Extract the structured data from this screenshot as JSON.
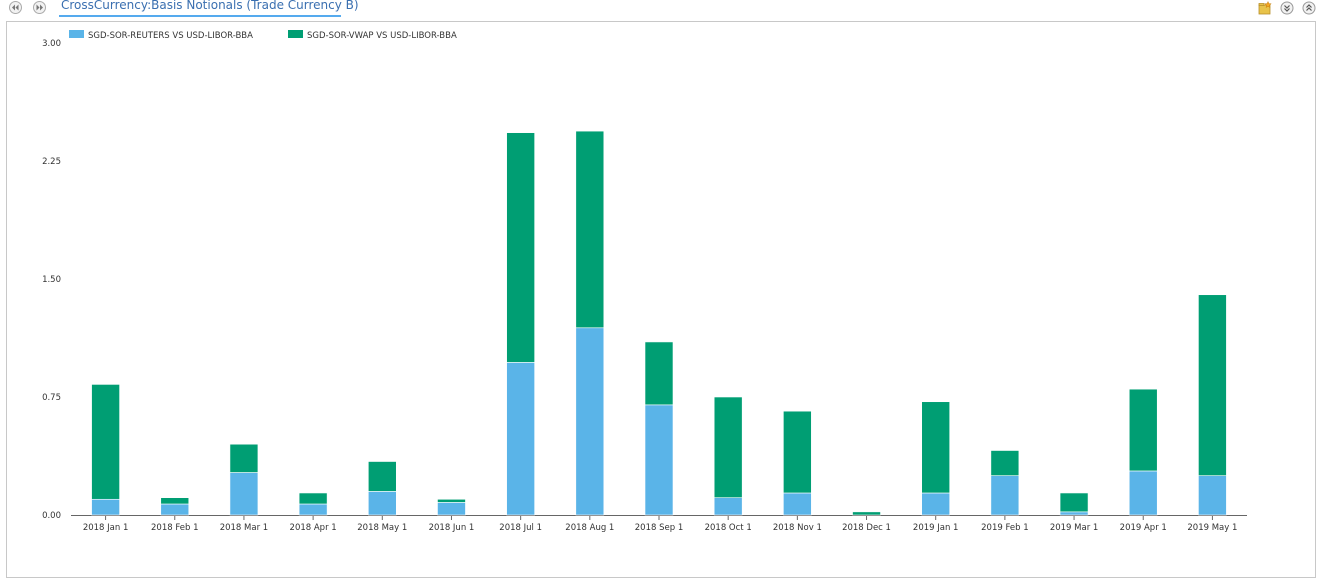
{
  "header": {
    "title": "CrossCurrency:Basis Notionals (Trade Currency B)"
  },
  "toolbar": {
    "back_icon": "rewind-icon",
    "forward_icon": "fast-forward-icon",
    "right_icons": [
      "folder-star-icon",
      "collapse-down-icon",
      "expand-up-icon"
    ]
  },
  "colors": {
    "series_a": "#5ab4e8",
    "series_b": "#009e73"
  },
  "chart_data": {
    "type": "bar",
    "stacked": true,
    "categories": [
      "2018 Jan 1",
      "2018 Feb 1",
      "2018 Mar 1",
      "2018 Apr 1",
      "2018 May 1",
      "2018 Jun 1",
      "2018 Jul 1",
      "2018 Aug 1",
      "2018 Sep 1",
      "2018 Oct 1",
      "2018 Nov 1",
      "2018 Dec 1",
      "2019 Jan 1",
      "2019 Feb 1",
      "2019 Mar 1",
      "2019 Apr 1",
      "2019 May 1"
    ],
    "series": [
      {
        "name": "SGD-SOR-REUTERS VS USD-LIBOR-BBA",
        "values": [
          0.1,
          0.07,
          0.27,
          0.07,
          0.15,
          0.08,
          0.97,
          1.19,
          0.7,
          0.11,
          0.14,
          0.0,
          0.14,
          0.25,
          0.02,
          0.28,
          0.25
        ]
      },
      {
        "name": "SGD-SOR-VWAP VS USD-LIBOR-BBA",
        "values": [
          0.73,
          0.04,
          0.18,
          0.07,
          0.19,
          0.02,
          1.46,
          1.25,
          0.4,
          0.64,
          0.52,
          0.02,
          0.58,
          0.16,
          0.12,
          0.52,
          1.15
        ]
      }
    ],
    "yticks": [
      "0.00",
      "0.75",
      "1.50",
      "2.25",
      "3.00"
    ],
    "ylim": [
      0,
      3
    ],
    "legend": "top-left",
    "grid": false
  }
}
